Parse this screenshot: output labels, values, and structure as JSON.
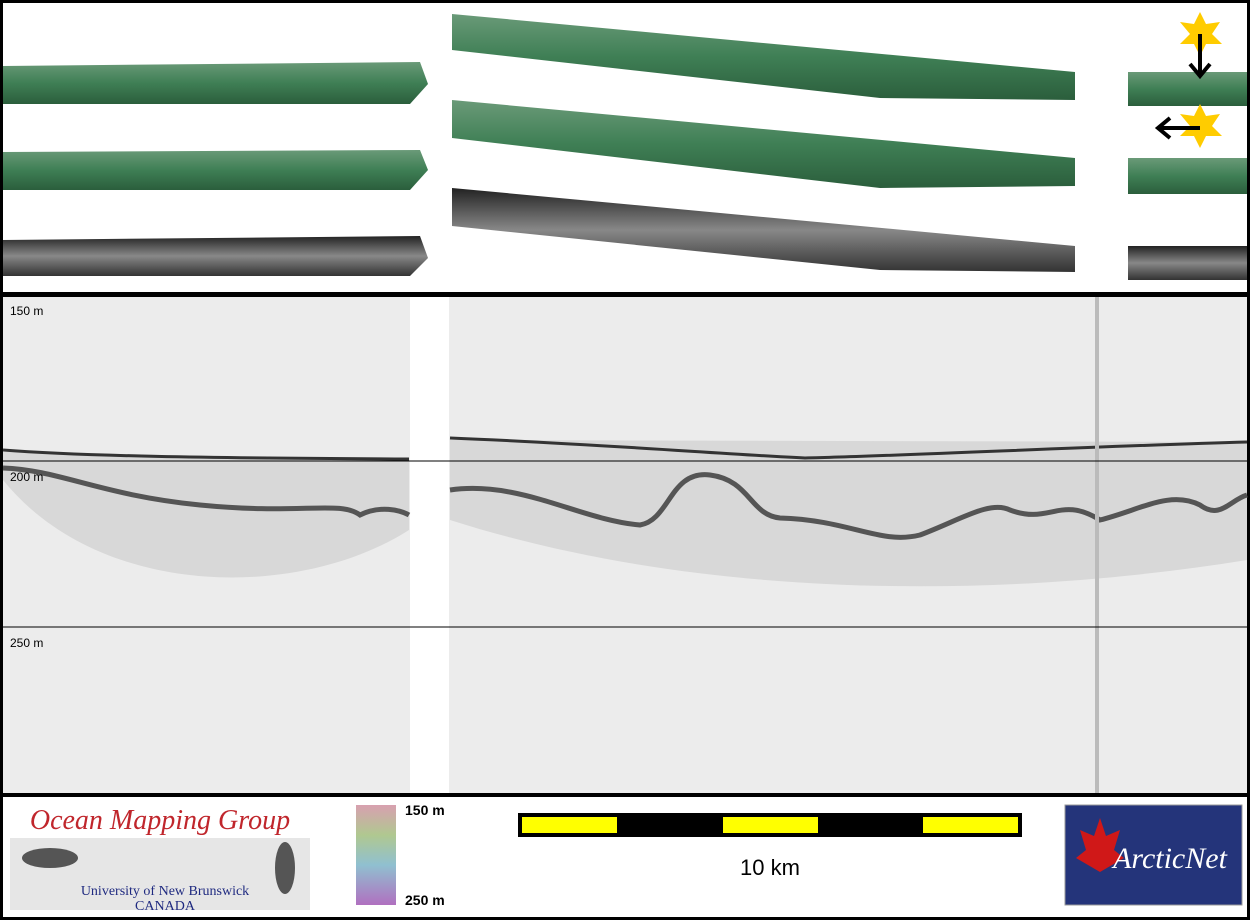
{
  "profile": {
    "depth_labels": [
      "150 m",
      "200 m",
      "250 m"
    ]
  },
  "logo": {
    "title": "Ocean Mapping Group",
    "university": "University of New Brunswick",
    "country": "CANADA"
  },
  "colorbar": {
    "top": "150 m",
    "bottom": "250 m"
  },
  "scale_bar": {
    "label": "10 km"
  },
  "partner_logo": {
    "label": "ArcticNet"
  }
}
